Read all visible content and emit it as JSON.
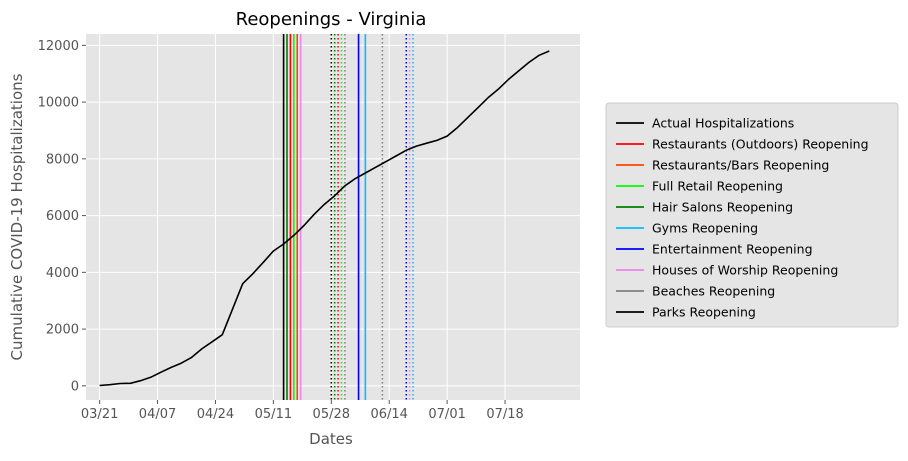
{
  "chart_data": {
    "type": "line",
    "title": "Reopenings - Virginia",
    "xlabel": "Dates",
    "ylabel": "Cumulative COVID-19 Hospitalizations",
    "x_ticks": [
      "03/21",
      "04/07",
      "04/24",
      "05/11",
      "05/28",
      "06/14",
      "07/01",
      "07/18"
    ],
    "y_ticks": [
      0,
      2000,
      4000,
      6000,
      8000,
      10000,
      12000
    ],
    "xlim": [
      "2020-03-17",
      "2020-08-09"
    ],
    "ylim": [
      -500,
      12400
    ],
    "grid": true,
    "legend_position": "outside right",
    "series": [
      {
        "name": "Actual Hospitalizations",
        "color": "#000000",
        "x": [
          "2020-03-21",
          "2020-03-24",
          "2020-03-27",
          "2020-03-30",
          "2020-04-02",
          "2020-04-05",
          "2020-04-08",
          "2020-04-11",
          "2020-04-14",
          "2020-04-17",
          "2020-04-20",
          "2020-04-23",
          "2020-04-26",
          "2020-04-29",
          "2020-05-02",
          "2020-05-05",
          "2020-05-08",
          "2020-05-11",
          "2020-05-14",
          "2020-05-17",
          "2020-05-20",
          "2020-05-23",
          "2020-05-26",
          "2020-05-29",
          "2020-06-01",
          "2020-06-04",
          "2020-06-07",
          "2020-06-10",
          "2020-06-13",
          "2020-06-16",
          "2020-06-19",
          "2020-06-22",
          "2020-06-25",
          "2020-06-28",
          "2020-07-01",
          "2020-07-04",
          "2020-07-07",
          "2020-07-10",
          "2020-07-13",
          "2020-07-16",
          "2020-07-19",
          "2020-07-22",
          "2020-07-25",
          "2020-07-28",
          "2020-07-31"
        ],
        "values": [
          10,
          40,
          80,
          90,
          180,
          300,
          480,
          650,
          800,
          1000,
          1300,
          1550,
          1800,
          2700,
          3600,
          3950,
          4350,
          4750,
          5000,
          5300,
          5650,
          6050,
          6400,
          6700,
          7050,
          7300,
          7500,
          7700,
          7900,
          8100,
          8300,
          8450,
          8550,
          8650,
          8800,
          9100,
          9450,
          9800,
          10150,
          10450,
          10800,
          11100,
          11400,
          11650,
          11800
        ]
      }
    ],
    "reopenings": [
      {
        "name": "Restaurants (Outdoors) Reopening",
        "color": "#ff0000"
      },
      {
        "name": "Restaurants/Bars Reopening",
        "color": "#ff4500"
      },
      {
        "name": "Full Retail Reopening",
        "color": "#00ff00"
      },
      {
        "name": "Hair Salons Reopening",
        "color": "#008000"
      },
      {
        "name": "Gyms Reopening",
        "color": "#00bfff"
      },
      {
        "name": "Entertainment Reopening",
        "color": "#0000ff"
      },
      {
        "name": "Houses of Worship Reopening",
        "color": "#ee82ee"
      },
      {
        "name": "Beaches Reopening",
        "color": "#808080"
      },
      {
        "name": "Parks Reopening",
        "color": "#000000"
      }
    ],
    "reopening_lines": [
      {
        "date": "2020-05-14",
        "color": "#000000",
        "style": "solid"
      },
      {
        "date": "2020-05-15",
        "color": "#008000",
        "style": "solid"
      },
      {
        "date": "2020-05-16",
        "color": "#ff0000",
        "style": "solid"
      },
      {
        "date": "2020-05-17",
        "color": "#00ff00",
        "style": "solid"
      },
      {
        "date": "2020-05-18",
        "color": "#ff4500",
        "style": "solid"
      },
      {
        "date": "2020-05-19",
        "color": "#ee82ee",
        "style": "solid"
      },
      {
        "date": "2020-05-28",
        "color": "#000000",
        "style": "dotted"
      },
      {
        "date": "2020-05-29",
        "color": "#008000",
        "style": "dotted"
      },
      {
        "date": "2020-05-30",
        "color": "#ff0000",
        "style": "dotted"
      },
      {
        "date": "2020-05-31",
        "color": "#00ff00",
        "style": "dotted"
      },
      {
        "date": "2020-06-01",
        "color": "#808080",
        "style": "dotted"
      },
      {
        "date": "2020-06-05",
        "color": "#0000ff",
        "style": "solid"
      },
      {
        "date": "2020-06-07",
        "color": "#00bfff",
        "style": "solid"
      },
      {
        "date": "2020-06-12",
        "color": "#808080",
        "style": "dotted"
      },
      {
        "date": "2020-06-19",
        "color": "#0000ff",
        "style": "dotted"
      },
      {
        "date": "2020-06-20",
        "color": "#ee82ee",
        "style": "dotted"
      },
      {
        "date": "2020-06-21",
        "color": "#00bfff",
        "style": "dotted"
      }
    ]
  }
}
